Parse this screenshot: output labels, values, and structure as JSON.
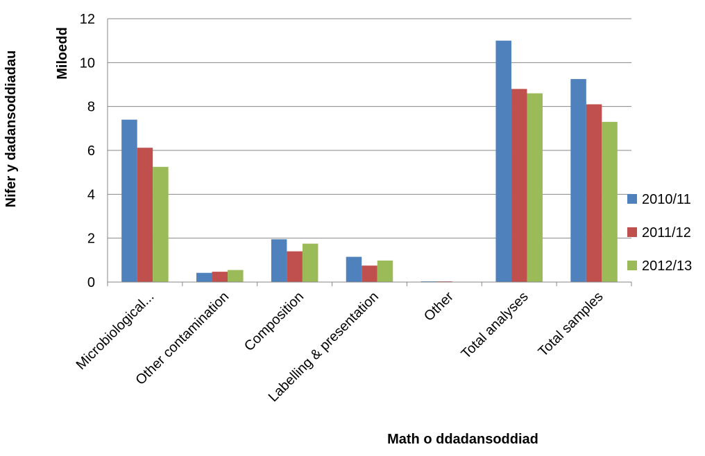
{
  "chart_data": {
    "type": "bar",
    "title": "",
    "xlabel": "Math o ddadansoddiad",
    "ylabel": "Nifer y dadansoddiadau",
    "y_unit_label": "Miloedd",
    "categories": [
      "Microbiological...",
      "Other contamination",
      "Composition",
      "Labelling & presentation",
      "Other",
      "Total analyses",
      "Total samples"
    ],
    "series": [
      {
        "name": "2010/11",
        "color": "#4F81BD",
        "values": [
          7.4,
          0.42,
          1.95,
          1.15,
          0.03,
          11.0,
          9.25
        ]
      },
      {
        "name": "2011/12",
        "color": "#C0504D",
        "values": [
          6.12,
          0.47,
          1.4,
          0.75,
          0.03,
          8.8,
          8.1
        ]
      },
      {
        "name": "2012/13",
        "color": "#9BBB59",
        "values": [
          5.25,
          0.55,
          1.75,
          0.98,
          0.0,
          8.6,
          7.3
        ]
      }
    ],
    "ylim": [
      0,
      12
    ],
    "yticks": [
      "0",
      "2",
      "4",
      "6",
      "8",
      "10",
      "12"
    ],
    "grid": true,
    "legend_position": "right"
  }
}
